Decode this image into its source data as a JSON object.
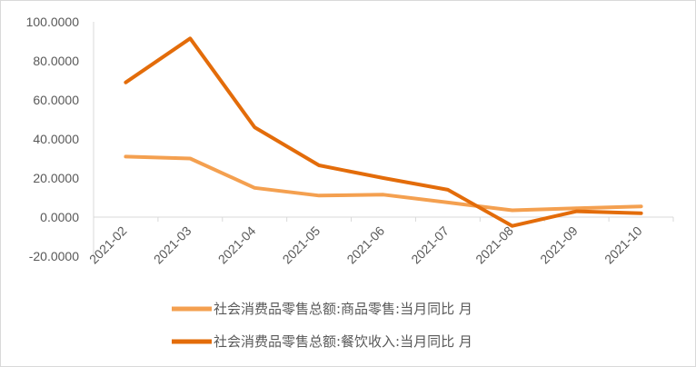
{
  "chart_data": {
    "type": "line",
    "categories": [
      "2021-02",
      "2021-03",
      "2021-04",
      "2021-05",
      "2021-06",
      "2021-07",
      "2021-08",
      "2021-09",
      "2021-10"
    ],
    "series": [
      {
        "name": "社会消费品零售总额:商品零售:当月同比 月",
        "color": "#f4a050",
        "values": [
          31.0,
          30.0,
          15.0,
          11.0,
          11.5,
          7.5,
          3.5,
          4.5,
          5.5
        ]
      },
      {
        "name": "社会消费品零售总额:餐饮收入:当月同比 月",
        "color": "#e36c0a",
        "values": [
          69.0,
          91.5,
          46.0,
          26.5,
          20.0,
          14.0,
          -4.5,
          3.0,
          2.0
        ]
      }
    ],
    "y_ticks": [
      "100.0000",
      "80.0000",
      "60.0000",
      "40.0000",
      "20.0000",
      "0.0000",
      "-20.0000"
    ],
    "ylim": [
      -20,
      100
    ],
    "grid": false,
    "legend_position": "bottom"
  }
}
